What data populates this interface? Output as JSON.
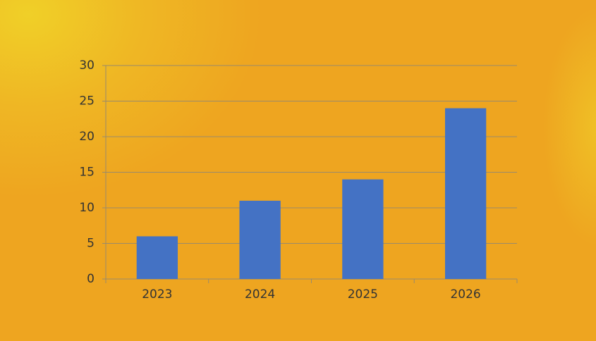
{
  "chart_data": {
    "type": "bar",
    "categories": [
      "2023",
      "2024",
      "2025",
      "2026"
    ],
    "values": [
      6,
      11,
      14,
      24
    ],
    "color": "#4472c4",
    "ylim": [
      0,
      30
    ],
    "yticks": [
      0,
      5,
      10,
      15,
      20,
      25,
      30
    ],
    "grid": true
  }
}
